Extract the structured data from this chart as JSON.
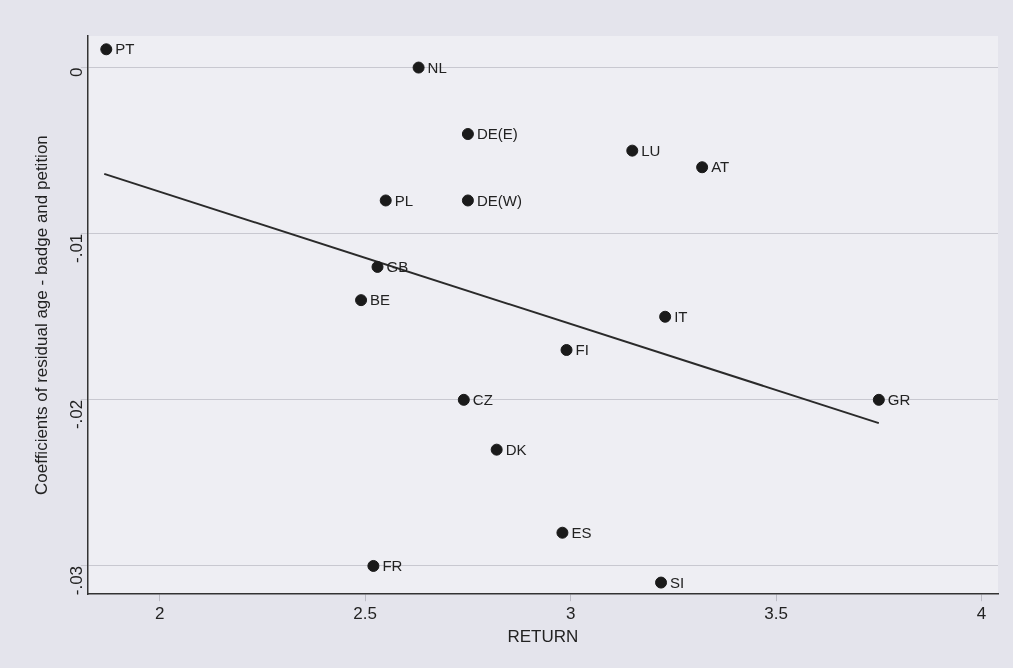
{
  "chart_data": {
    "type": "scatter",
    "xlabel": "RETURN",
    "ylabel": "Coefficients of residual age - badge and petition",
    "xlim": [
      1.825,
      4.04
    ],
    "xticks": [
      2,
      2.5,
      3,
      3.5,
      4
    ],
    "ylim": [
      -0.0317,
      0.0019
    ],
    "yticks": [
      {
        "value": 0,
        "label": "0"
      },
      {
        "value": -0.01,
        "label": "-.01"
      },
      {
        "value": -0.02,
        "label": "-.02"
      },
      {
        "value": -0.03,
        "label": "-.03"
      }
    ],
    "grid": "y",
    "legend": false,
    "marker": "circle",
    "series": [
      {
        "color": "#1a1a1a",
        "x": [
          1.87,
          2.63,
          2.75,
          3.15,
          3.32,
          2.55,
          2.75,
          2.53,
          2.49,
          3.23,
          2.99,
          2.74,
          3.75,
          2.82,
          2.98,
          2.52,
          3.22
        ],
        "values": [
          0.0011,
          0,
          -0.004,
          -0.005,
          -0.006,
          -0.008,
          -0.008,
          -0.012,
          -0.014,
          -0.015,
          -0.017,
          -0.02,
          -0.02,
          -0.023,
          -0.028,
          -0.03,
          -0.031
        ]
      },
      {
        "type": "line",
        "color": "#2a2a2a",
        "marker": "none",
        "line_style": "solid",
        "x": [
          1.865,
          3.75
        ],
        "values": [
          -0.0064,
          -0.0214
        ]
      }
    ],
    "annotations": [
      {
        "text": "PT",
        "x": 1.87,
        "y": 0.0011
      },
      {
        "text": "NL",
        "x": 2.63,
        "y": 0
      },
      {
        "text": "DE(E)",
        "x": 2.75,
        "y": -0.004
      },
      {
        "text": "LU",
        "x": 3.15,
        "y": -0.005
      },
      {
        "text": "AT",
        "x": 3.32,
        "y": -0.006
      },
      {
        "text": "PL",
        "x": 2.55,
        "y": -0.008
      },
      {
        "text": "DE(W)",
        "x": 2.75,
        "y": -0.008
      },
      {
        "text": "GB",
        "x": 2.53,
        "y": -0.012
      },
      {
        "text": "BE",
        "x": 2.49,
        "y": -0.014
      },
      {
        "text": "IT",
        "x": 3.23,
        "y": -0.015
      },
      {
        "text": "FI",
        "x": 2.99,
        "y": -0.017
      },
      {
        "text": "CZ",
        "x": 2.74,
        "y": -0.02
      },
      {
        "text": "GR",
        "x": 3.75,
        "y": -0.02
      },
      {
        "text": "DK",
        "x": 2.82,
        "y": -0.023
      },
      {
        "text": "ES",
        "x": 2.98,
        "y": -0.028
      },
      {
        "text": "FR",
        "x": 2.52,
        "y": -0.03
      },
      {
        "text": "SI",
        "x": 3.22,
        "y": -0.031
      }
    ]
  }
}
